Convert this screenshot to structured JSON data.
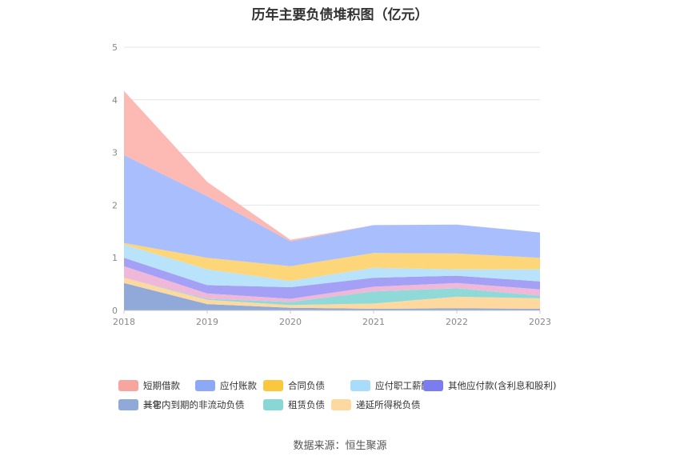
{
  "chart_data": {
    "type": "area",
    "stacked": true,
    "title": "历年主要负债堆积图（亿元）",
    "x": [
      "2018",
      "2019",
      "2020",
      "2021",
      "2022",
      "2023"
    ],
    "ylim": [
      0,
      5
    ],
    "yticks": [
      "0",
      "1",
      "2",
      "3",
      "4",
      "5"
    ],
    "grid": true,
    "legend_position": "bottom",
    "series": [
      {
        "name": "其它",
        "color": "#90a9d9",
        "values": [
          0.52,
          0.12,
          0.05,
          0.03,
          0.04,
          0.03
        ]
      },
      {
        "name": "递延所得税负债",
        "color": "#fdd9a0",
        "values": [
          0.1,
          0.08,
          0.05,
          0.1,
          0.22,
          0.2
        ]
      },
      {
        "name": "租赁负债",
        "color": "#8fd9d9",
        "values": [
          0.0,
          0.02,
          0.06,
          0.23,
          0.16,
          0.05
        ]
      },
      {
        "name": "一年内到期的非流动负债",
        "color": "#f0b8d8",
        "values": [
          0.22,
          0.1,
          0.06,
          0.09,
          0.1,
          0.12
        ]
      },
      {
        "name": "其他应付款(含利息和股利)",
        "color": "#a3a0f5",
        "values": [
          0.16,
          0.16,
          0.22,
          0.17,
          0.14,
          0.15
        ]
      },
      {
        "name": "应付职工薪酬",
        "color": "#b8e3fb",
        "values": [
          0.25,
          0.3,
          0.12,
          0.19,
          0.12,
          0.23
        ]
      },
      {
        "name": "合同负债",
        "color": "#fdd67a",
        "values": [
          0.03,
          0.22,
          0.28,
          0.28,
          0.3,
          0.22
        ]
      },
      {
        "name": "应付账款",
        "color": "#a9befc",
        "values": [
          1.67,
          1.17,
          0.47,
          0.53,
          0.55,
          0.48
        ]
      },
      {
        "name": "短期借款",
        "color": "#fdbab5",
        "values": [
          1.22,
          0.27,
          0.03,
          0.0,
          0.0,
          0.0
        ]
      }
    ]
  },
  "legend": [
    {
      "label": "短期借款",
      "color": "#f7a59f"
    },
    {
      "label": "应付账款",
      "color": "#8ea8f8"
    },
    {
      "label": "合同负债",
      "color": "#fcc63e"
    },
    {
      "label": "应付职工薪酬",
      "color": "#a8dcfa"
    },
    {
      "label": "其他应付款(含利息和股利)",
      "color": "#7a7cf0"
    },
    {
      "label": "一年内到期的非流动负债",
      "color": "#eab8d8"
    },
    {
      "label": "租赁负债",
      "color": "#88d6d6"
    },
    {
      "label": "递延所得税负债",
      "color": "#fdd9a0"
    },
    {
      "label": "其它",
      "color": "#8fa9d9"
    }
  ],
  "source": "数据来源：恒生聚源"
}
